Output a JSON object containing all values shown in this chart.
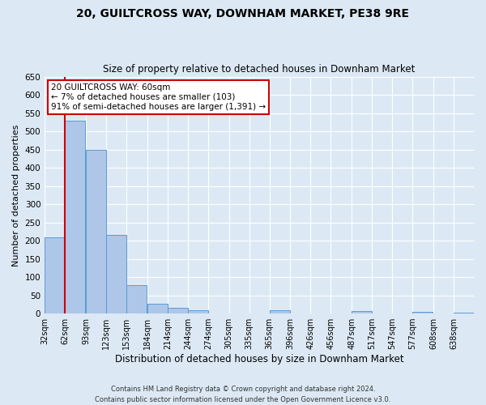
{
  "title": "20, GUILTCROSS WAY, DOWNHAM MARKET, PE38 9RE",
  "subtitle": "Size of property relative to detached houses in Downham Market",
  "xlabel": "Distribution of detached houses by size in Downham Market",
  "ylabel": "Number of detached properties",
  "bin_labels": [
    "32sqm",
    "62sqm",
    "93sqm",
    "123sqm",
    "153sqm",
    "184sqm",
    "214sqm",
    "244sqm",
    "274sqm",
    "305sqm",
    "335sqm",
    "365sqm",
    "396sqm",
    "426sqm",
    "456sqm",
    "487sqm",
    "517sqm",
    "547sqm",
    "577sqm",
    "608sqm",
    "638sqm"
  ],
  "bin_edges": [
    32,
    62,
    93,
    123,
    153,
    184,
    214,
    244,
    274,
    305,
    335,
    365,
    396,
    426,
    456,
    487,
    517,
    547,
    577,
    608,
    638
  ],
  "bar_heights": [
    210,
    530,
    450,
    215,
    78,
    27,
    15,
    10,
    0,
    0,
    0,
    10,
    0,
    0,
    0,
    6,
    0,
    0,
    5,
    0,
    2
  ],
  "bar_color": "#aec6e8",
  "bar_edge_color": "#5b9bd5",
  "red_line_x": 62,
  "annotation_title": "20 GUILTCROSS WAY: 60sqm",
  "annotation_line1": "← 7% of detached houses are smaller (103)",
  "annotation_line2": "91% of semi-detached houses are larger (1,391) →",
  "annotation_box_color": "#ffffff",
  "annotation_box_edge_color": "#cc0000",
  "red_line_color": "#cc0000",
  "ylim": [
    0,
    650
  ],
  "yticks": [
    0,
    50,
    100,
    150,
    200,
    250,
    300,
    350,
    400,
    450,
    500,
    550,
    600,
    650
  ],
  "background_color": "#dce9f5",
  "grid_color": "#ffffff",
  "footnote1": "Contains HM Land Registry data © Crown copyright and database right 2024.",
  "footnote2": "Contains public sector information licensed under the Open Government Licence v3.0."
}
